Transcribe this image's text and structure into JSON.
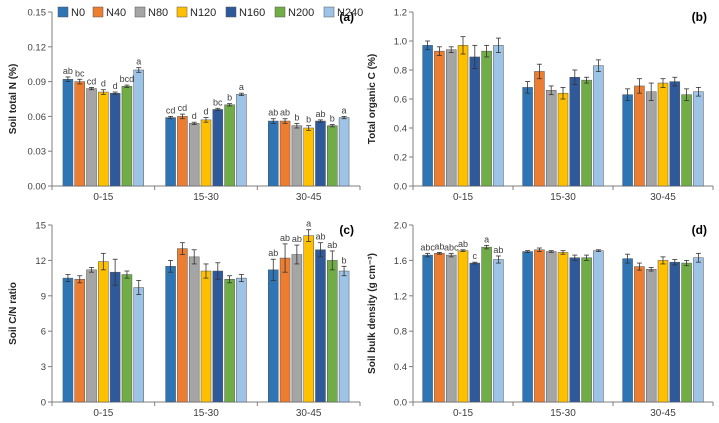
{
  "legend": [
    {
      "name": "N0",
      "color": "#2e75b6"
    },
    {
      "name": "N40",
      "color": "#ed7d31"
    },
    {
      "name": "N80",
      "color": "#a5a5a5"
    },
    {
      "name": "N120",
      "color": "#ffc000"
    },
    {
      "name": "N160",
      "color": "#2e5a9c"
    },
    {
      "name": "N200",
      "color": "#70ad47"
    },
    {
      "name": "N240",
      "color": "#9dc3e6"
    }
  ],
  "chart_data": [
    {
      "type": "bar",
      "panel": "(a)",
      "title": "",
      "xlabel": "",
      "ylabel": "Soil total N (%)",
      "categories": [
        "0-15",
        "15-30",
        "30-45"
      ],
      "ylim": [
        0,
        0.15
      ],
      "yticks": [
        "0.00",
        "0.03",
        "0.06",
        "0.09",
        "0.12",
        "0.15"
      ],
      "series": [
        {
          "name": "N0",
          "values": [
            0.092,
            0.059,
            0.056
          ],
          "errors": [
            0.002,
            0.001,
            0.002
          ],
          "labels": [
            "ab",
            "cd",
            "ab"
          ]
        },
        {
          "name": "N40",
          "values": [
            0.09,
            0.06,
            0.056
          ],
          "errors": [
            0.002,
            0.002,
            0.002
          ],
          "labels": [
            "bc",
            "cd",
            "ab"
          ]
        },
        {
          "name": "N80",
          "values": [
            0.084,
            0.054,
            0.052
          ],
          "errors": [
            0.001,
            0.001,
            0.002
          ],
          "labels": [
            "cd",
            "d",
            "b"
          ]
        },
        {
          "name": "N120",
          "values": [
            0.081,
            0.057,
            0.05
          ],
          "errors": [
            0.002,
            0.002,
            0.002
          ],
          "labels": [
            "d",
            "d",
            "b"
          ]
        },
        {
          "name": "N160",
          "values": [
            0.08,
            0.066,
            0.056
          ],
          "errors": [
            0.001,
            0.001,
            0.001
          ],
          "labels": [
            "d",
            "bc",
            "ab"
          ]
        },
        {
          "name": "N200",
          "values": [
            0.086,
            0.07,
            0.052
          ],
          "errors": [
            0.001,
            0.001,
            0.001
          ],
          "labels": [
            "bcd",
            "b",
            "b"
          ]
        },
        {
          "name": "N240",
          "values": [
            0.1,
            0.079,
            0.059
          ],
          "errors": [
            0.002,
            0.001,
            0.001
          ],
          "labels": [
            "a",
            "a",
            "a"
          ]
        }
      ]
    },
    {
      "type": "bar",
      "panel": "(b)",
      "title": "",
      "xlabel": "",
      "ylabel": "Total organic C (%)",
      "categories": [
        "0-15",
        "15-30",
        "30-45"
      ],
      "ylim": [
        0,
        1.2
      ],
      "yticks": [
        "0.0",
        "0.2",
        "0.4",
        "0.6",
        "0.8",
        "1.0",
        "1.2"
      ],
      "series": [
        {
          "name": "N0",
          "values": [
            0.97,
            0.68,
            0.63
          ],
          "errors": [
            0.03,
            0.04,
            0.04
          ],
          "labels": [
            "",
            "",
            ""
          ]
        },
        {
          "name": "N40",
          "values": [
            0.93,
            0.79,
            0.69
          ],
          "errors": [
            0.03,
            0.05,
            0.05
          ],
          "labels": [
            "",
            "",
            ""
          ]
        },
        {
          "name": "N80",
          "values": [
            0.94,
            0.66,
            0.65
          ],
          "errors": [
            0.02,
            0.03,
            0.06
          ],
          "labels": [
            "",
            "",
            ""
          ]
        },
        {
          "name": "N120",
          "values": [
            0.97,
            0.64,
            0.71
          ],
          "errors": [
            0.06,
            0.04,
            0.03
          ],
          "labels": [
            "",
            "",
            ""
          ]
        },
        {
          "name": "N160",
          "values": [
            0.89,
            0.75,
            0.72
          ],
          "errors": [
            0.08,
            0.05,
            0.03
          ],
          "labels": [
            "",
            "",
            ""
          ]
        },
        {
          "name": "N200",
          "values": [
            0.93,
            0.73,
            0.63
          ],
          "errors": [
            0.04,
            0.02,
            0.04
          ],
          "labels": [
            "",
            "",
            ""
          ]
        },
        {
          "name": "N240",
          "values": [
            0.97,
            0.83,
            0.65
          ],
          "errors": [
            0.05,
            0.04,
            0.03
          ],
          "labels": [
            "",
            "",
            ""
          ]
        }
      ]
    },
    {
      "type": "bar",
      "panel": "(c)",
      "title": "",
      "xlabel": "",
      "ylabel": "Soil C/N ratio",
      "categories": [
        "0-15",
        "15-30",
        "30-45"
      ],
      "ylim": [
        0,
        15
      ],
      "yticks": [
        "0",
        "3",
        "6",
        "9",
        "12",
        "15"
      ],
      "series": [
        {
          "name": "N0",
          "values": [
            10.5,
            11.5,
            11.2
          ],
          "errors": [
            0.3,
            0.5,
            0.9
          ],
          "labels": [
            "",
            "",
            "ab"
          ]
        },
        {
          "name": "N40",
          "values": [
            10.4,
            13.0,
            12.2
          ],
          "errors": [
            0.3,
            0.5,
            1.2
          ],
          "labels": [
            "",
            "",
            "ab"
          ]
        },
        {
          "name": "N80",
          "values": [
            11.2,
            12.3,
            12.5
          ],
          "errors": [
            0.2,
            0.6,
            0.8
          ],
          "labels": [
            "",
            "",
            "ab"
          ]
        },
        {
          "name": "N120",
          "values": [
            11.9,
            11.1,
            14.1
          ],
          "errors": [
            0.7,
            0.6,
            0.5
          ],
          "labels": [
            "",
            "",
            "a"
          ]
        },
        {
          "name": "N160",
          "values": [
            11.0,
            11.1,
            12.9
          ],
          "errors": [
            1.1,
            0.7,
            0.6
          ],
          "labels": [
            "",
            "",
            "ab"
          ]
        },
        {
          "name": "N200",
          "values": [
            10.8,
            10.4,
            12.0
          ],
          "errors": [
            0.3,
            0.3,
            0.8
          ],
          "labels": [
            "",
            "",
            "ab"
          ]
        },
        {
          "name": "N240",
          "values": [
            9.7,
            10.5,
            11.1
          ],
          "errors": [
            0.6,
            0.3,
            0.4
          ],
          "labels": [
            "",
            "",
            "b"
          ]
        }
      ]
    },
    {
      "type": "bar",
      "panel": "(d)",
      "title": "",
      "xlabel": "",
      "ylabel": "Soil bulk density (g cm⁻³)",
      "categories": [
        "0-15",
        "15-30",
        "30-45"
      ],
      "ylim": [
        0,
        2.0
      ],
      "yticks": [
        "0.0",
        "0.4",
        "0.8",
        "1.2",
        "1.6",
        "2.0"
      ],
      "series": [
        {
          "name": "N0",
          "values": [
            1.66,
            1.7,
            1.62
          ],
          "errors": [
            0.02,
            0.01,
            0.05
          ],
          "labels": [
            "abc",
            "",
            ""
          ]
        },
        {
          "name": "N40",
          "values": [
            1.68,
            1.72,
            1.53
          ],
          "errors": [
            0.01,
            0.02,
            0.04
          ],
          "labels": [
            "ab",
            "",
            ""
          ]
        },
        {
          "name": "N80",
          "values": [
            1.66,
            1.7,
            1.5
          ],
          "errors": [
            0.02,
            0.01,
            0.02
          ],
          "labels": [
            "abc",
            "",
            ""
          ]
        },
        {
          "name": "N120",
          "values": [
            1.71,
            1.69,
            1.6
          ],
          "errors": [
            0.01,
            0.02,
            0.04
          ],
          "labels": [
            "ab",
            "",
            ""
          ]
        },
        {
          "name": "N160",
          "values": [
            1.57,
            1.63,
            1.58
          ],
          "errors": [
            0.01,
            0.03,
            0.03
          ],
          "labels": [
            "c",
            "",
            ""
          ]
        },
        {
          "name": "N200",
          "values": [
            1.75,
            1.63,
            1.57
          ],
          "errors": [
            0.02,
            0.03,
            0.03
          ],
          "labels": [
            "a",
            "",
            ""
          ]
        },
        {
          "name": "N240",
          "values": [
            1.61,
            1.71,
            1.63
          ],
          "errors": [
            0.04,
            0.01,
            0.05
          ],
          "labels": [
            "ab",
            "",
            ""
          ]
        }
      ]
    }
  ]
}
